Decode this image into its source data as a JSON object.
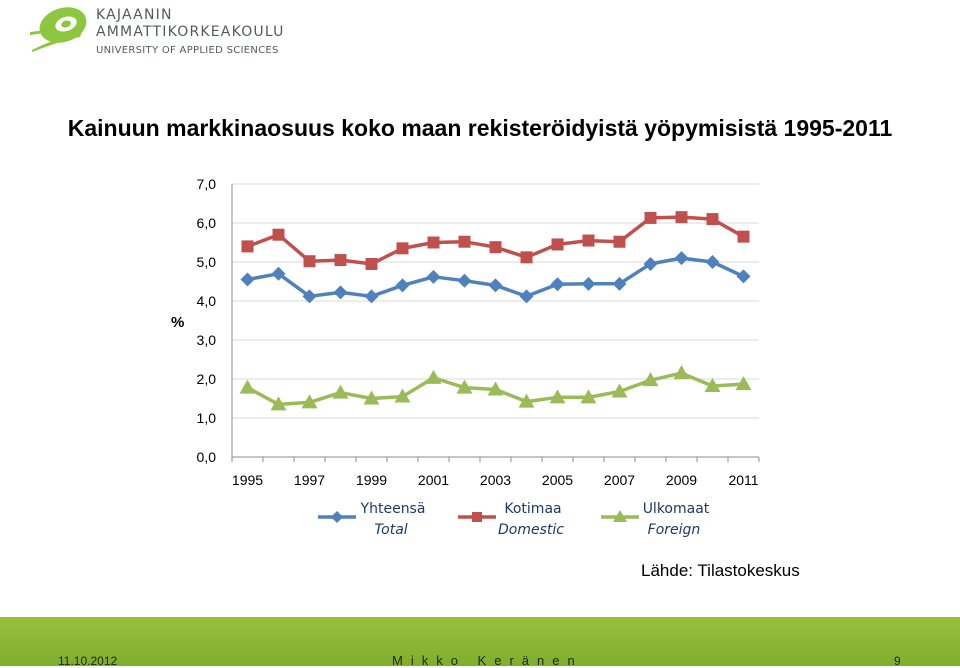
{
  "logo": {
    "line1": "KAJAANIN",
    "line2": "AMMATTIKORKEAKOULU",
    "line3": "UNIVERSITY OF APPLIED SCIENCES",
    "icon": "green-swoosh-logo",
    "color": "#8dc63f"
  },
  "slide_title": "Kainuun markkinaosuus koko maan rekisteröidyistä yöpymisistä 1995-2011",
  "chart_data": {
    "type": "line",
    "title": "",
    "xlabel": "",
    "ylabel": "%",
    "x": [
      1995,
      1996,
      1997,
      1998,
      1999,
      2000,
      2001,
      2002,
      2003,
      2004,
      2005,
      2006,
      2007,
      2008,
      2009,
      2010,
      2011
    ],
    "x_tick_labels": [
      "1995",
      "1997",
      "1999",
      "2001",
      "2003",
      "2005",
      "2007",
      "2009",
      "2011"
    ],
    "y_tick_labels": [
      "0,0",
      "1,0",
      "2,0",
      "3,0",
      "4,0",
      "5,0",
      "6,0",
      "7,0"
    ],
    "ylim": [
      0,
      7
    ],
    "grid": "horizontal",
    "legend": "bottom",
    "series": [
      {
        "name": "Yhteensä",
        "name2": "Total",
        "color": "#4f81bd",
        "marker": "diamond",
        "values": [
          4.55,
          4.7,
          4.12,
          4.22,
          4.12,
          4.4,
          4.62,
          4.52,
          4.4,
          4.12,
          4.43,
          4.44,
          4.44,
          4.95,
          5.1,
          5.0,
          4.63
        ]
      },
      {
        "name": "Kotimaa",
        "name2": "Domestic",
        "color": "#c0504d",
        "marker": "square",
        "values": [
          5.4,
          5.7,
          5.02,
          5.05,
          4.95,
          5.35,
          5.5,
          5.52,
          5.38,
          5.12,
          5.45,
          5.55,
          5.52,
          6.13,
          6.15,
          6.1,
          5.65
        ]
      },
      {
        "name": "Ulkomaat",
        "name2": "Foreign",
        "color": "#9bbb59",
        "marker": "triangle",
        "values": [
          1.78,
          1.35,
          1.4,
          1.65,
          1.5,
          1.55,
          2.03,
          1.78,
          1.73,
          1.42,
          1.53,
          1.53,
          1.68,
          1.97,
          2.15,
          1.82,
          1.87
        ]
      }
    ]
  },
  "source_note": "Lähde: Tilastokeskus",
  "footer": {
    "date": "11.10.2012",
    "author": "Mikko Keränen",
    "page": "9",
    "color": "#8cba38"
  }
}
